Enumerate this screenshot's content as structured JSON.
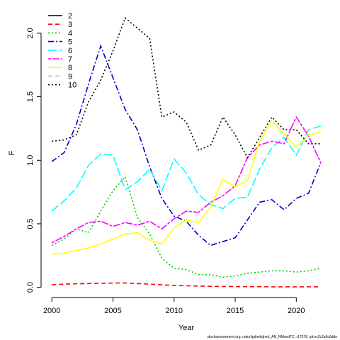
{
  "chart_data": {
    "type": "line",
    "x_label": "Year",
    "y_label": "F",
    "footer": "stockassessment.org, naturligdoelighed_AN_NMandTC, r17576, git:ec2c2a0c6dde",
    "legend": "top-left",
    "x": [
      2000,
      2001,
      2002,
      2003,
      2004,
      2005,
      2006,
      2007,
      2008,
      2009,
      2010,
      2011,
      2012,
      2013,
      2014,
      2015,
      2016,
      2017,
      2018,
      2019,
      2020,
      2021,
      2022
    ],
    "xlim": [
      1999.12,
      2022.88
    ],
    "xticks": [
      2000,
      2005,
      2010,
      2015,
      2020
    ],
    "ylim": [
      -0.08,
      2.2
    ],
    "yticks": [
      {
        "value": 0,
        "label": "0.0"
      },
      0.5,
      {
        "value": 1,
        "label": "1.0"
      },
      1.5,
      {
        "value": 2,
        "label": "2.0"
      }
    ],
    "series": [
      {
        "name": "2",
        "color": "#000000",
        "dash": "none",
        "values": [
          null,
          null,
          null,
          null,
          null,
          null,
          null,
          null,
          null,
          null,
          null,
          null,
          null,
          null,
          null,
          null,
          null,
          null,
          null,
          null,
          null,
          null,
          null
        ]
      },
      {
        "name": "3",
        "color": "#ff0000",
        "dash": "6,4",
        "values": [
          0.02,
          0.025,
          0.028,
          0.03,
          0.032,
          0.034,
          0.034,
          0.03,
          0.025,
          0.02,
          0.015,
          0.012,
          0.01,
          0.008,
          0.007,
          0.006,
          0.005,
          0.005,
          0.004,
          0.004,
          0.004,
          0.004,
          0.004
        ]
      },
      {
        "name": "4",
        "color": "#00cd00",
        "dash": "2,3",
        "values": [
          0.33,
          0.38,
          0.46,
          0.43,
          0.6,
          0.76,
          0.87,
          0.55,
          0.42,
          0.23,
          0.15,
          0.14,
          0.1,
          0.1,
          0.08,
          0.09,
          0.11,
          0.12,
          0.13,
          0.13,
          0.12,
          0.13,
          0.15
        ]
      },
      {
        "name": "5",
        "color": "#0000cd",
        "dash": "8,3,2,3",
        "values": [
          0.99,
          1.06,
          1.28,
          1.6,
          1.9,
          1.65,
          1.4,
          1.24,
          0.95,
          0.7,
          0.56,
          0.52,
          0.41,
          0.33,
          0.36,
          0.39,
          0.53,
          0.67,
          0.69,
          0.61,
          0.7,
          0.74,
          0.98
        ]
      },
      {
        "name": "6",
        "color": "#00ffff",
        "dash": "12,4",
        "values": [
          0.6,
          0.68,
          0.78,
          0.96,
          1.05,
          1.04,
          0.77,
          0.83,
          0.93,
          0.76,
          1.01,
          0.9,
          0.73,
          0.65,
          0.62,
          0.7,
          0.71,
          0.93,
          1.1,
          1.18,
          1.04,
          1.24,
          1.27
        ]
      },
      {
        "name": "7",
        "color": "#ff00ff",
        "dash": "4,2,10,2",
        "values": [
          0.35,
          0.4,
          0.46,
          0.51,
          0.52,
          0.48,
          0.51,
          0.49,
          0.52,
          0.46,
          0.54,
          0.6,
          0.59,
          0.67,
          0.72,
          0.8,
          1.02,
          1.12,
          1.15,
          1.13,
          1.34,
          1.19,
          0.98
        ]
      },
      {
        "name": "8",
        "color": "#ffff00",
        "dash": "none",
        "values": [
          0.26,
          0.27,
          0.29,
          0.31,
          0.34,
          0.38,
          0.42,
          0.43,
          0.37,
          0.34,
          0.47,
          0.53,
          0.51,
          0.63,
          0.85,
          0.79,
          0.84,
          1.15,
          1.31,
          1.21,
          1.1,
          1.2,
          1.22
        ]
      },
      {
        "name": "9",
        "color": "#bebebe",
        "dash": "6,4",
        "values": [
          null,
          null,
          null,
          null,
          null,
          null,
          null,
          null,
          null,
          null,
          null,
          null,
          null,
          null,
          null,
          null,
          null,
          null,
          null,
          null,
          null,
          null,
          null
        ]
      },
      {
        "name": "10",
        "color": "#000000",
        "dash": "2,3",
        "values": [
          1.15,
          1.16,
          1.2,
          1.46,
          1.63,
          1.86,
          2.12,
          2.04,
          1.96,
          1.34,
          1.38,
          1.3,
          1.08,
          1.12,
          1.34,
          1.2,
          1.02,
          1.18,
          1.34,
          1.24,
          1.24,
          1.13,
          1.13
        ]
      }
    ]
  }
}
